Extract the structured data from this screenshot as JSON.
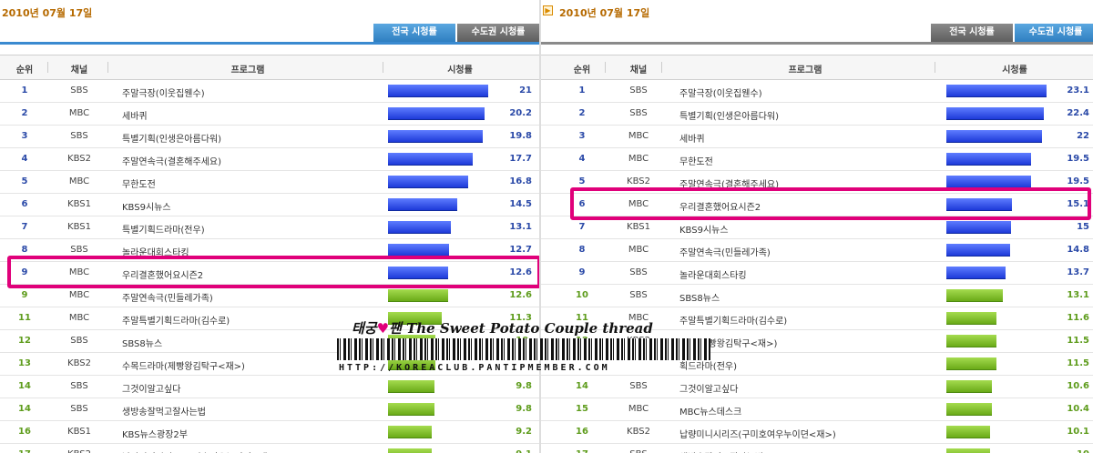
{
  "left": {
    "date": "2010년 07월 17일",
    "tabs": [
      "전국 시청률",
      "수도권 시청률"
    ],
    "active_tab": 0,
    "headers": {
      "rank": "순위",
      "channel": "채널",
      "program": "프로그램",
      "rating": "시청률"
    },
    "rows": [
      {
        "rank": "1",
        "channel": "SBS",
        "program": "주말극장(이웃집웬수)",
        "rating": "21",
        "value": 21,
        "color": "blue"
      },
      {
        "rank": "2",
        "channel": "MBC",
        "program": "세바퀴",
        "rating": "20.2",
        "value": 20.2,
        "color": "blue"
      },
      {
        "rank": "3",
        "channel": "SBS",
        "program": "특별기획(인생은아름다워)",
        "rating": "19.8",
        "value": 19.8,
        "color": "blue"
      },
      {
        "rank": "4",
        "channel": "KBS2",
        "program": "주말연속극(결혼해주세요)",
        "rating": "17.7",
        "value": 17.7,
        "color": "blue"
      },
      {
        "rank": "5",
        "channel": "MBC",
        "program": "무한도전",
        "rating": "16.8",
        "value": 16.8,
        "color": "blue"
      },
      {
        "rank": "6",
        "channel": "KBS1",
        "program": "KBS9시뉴스",
        "rating": "14.5",
        "value": 14.5,
        "color": "blue"
      },
      {
        "rank": "7",
        "channel": "KBS1",
        "program": "특별기획드라마(전우)",
        "rating": "13.1",
        "value": 13.1,
        "color": "blue"
      },
      {
        "rank": "8",
        "channel": "SBS",
        "program": "놀라운대회스타킹",
        "rating": "12.7",
        "value": 12.7,
        "color": "blue"
      },
      {
        "rank": "9",
        "channel": "MBC",
        "program": "우리결혼했어요시즌2",
        "rating": "12.6",
        "value": 12.6,
        "color": "blue"
      },
      {
        "rank": "9",
        "channel": "MBC",
        "program": "주말연속극(민들레가족)",
        "rating": "12.6",
        "value": 12.6,
        "color": "green"
      },
      {
        "rank": "11",
        "channel": "MBC",
        "program": "주말특별기획드라마(김수로)",
        "rating": "11.3",
        "value": 11.3,
        "color": "green"
      },
      {
        "rank": "12",
        "channel": "SBS",
        "program": "SBS8뉴스",
        "rating": "10.",
        "value": 10,
        "color": "green"
      },
      {
        "rank": "13",
        "channel": "KBS2",
        "program": "수목드라마(제빵왕김탁구<재>)",
        "rating": "",
        "value": 10,
        "color": "green"
      },
      {
        "rank": "14",
        "channel": "SBS",
        "program": "그것이알고싶다",
        "rating": "9.8",
        "value": 9.8,
        "color": "green"
      },
      {
        "rank": "14",
        "channel": "SBS",
        "program": "생방송잘먹고잘사는법",
        "rating": "9.8",
        "value": 9.8,
        "color": "green"
      },
      {
        "rank": "16",
        "channel": "KBS1",
        "program": "KBS뉴스광장2부",
        "rating": "9.2",
        "value": 9.2,
        "color": "green"
      },
      {
        "rank": "17",
        "channel": "KBS2",
        "program": "납량미니시리즈(구미호여우누이뎐<재>)",
        "rating": "9.1",
        "value": 9.1,
        "color": "green"
      }
    ],
    "highlight_index": 8
  },
  "right": {
    "date": "2010년 07월 17일",
    "tabs": [
      "전국 시청률",
      "수도권 시청률"
    ],
    "active_tab": 1,
    "headers": {
      "rank": "순위",
      "channel": "채널",
      "program": "프로그램",
      "rating": "시청률"
    },
    "rows": [
      {
        "rank": "1",
        "channel": "SBS",
        "program": "주말극장(이웃집웬수)",
        "rating": "23.1",
        "value": 23.1,
        "color": "blue"
      },
      {
        "rank": "2",
        "channel": "SBS",
        "program": "특별기획(인생은아름다워)",
        "rating": "22.4",
        "value": 22.4,
        "color": "blue"
      },
      {
        "rank": "3",
        "channel": "MBC",
        "program": "세바퀴",
        "rating": "22",
        "value": 22,
        "color": "blue"
      },
      {
        "rank": "4",
        "channel": "MBC",
        "program": "무한도전",
        "rating": "19.5",
        "value": 19.5,
        "color": "blue"
      },
      {
        "rank": "5",
        "channel": "KBS2",
        "program": "주말연속극(결혼해주세요)",
        "rating": "19.5",
        "value": 19.5,
        "color": "blue"
      },
      {
        "rank": "6",
        "channel": "MBC",
        "program": "우리결혼했어요시즌2",
        "rating": "15.1",
        "value": 15.1,
        "color": "blue"
      },
      {
        "rank": "7",
        "channel": "KBS1",
        "program": "KBS9시뉴스",
        "rating": "15",
        "value": 15,
        "color": "blue"
      },
      {
        "rank": "8",
        "channel": "MBC",
        "program": "주말연속극(민들레가족)",
        "rating": "14.8",
        "value": 14.8,
        "color": "blue"
      },
      {
        "rank": "9",
        "channel": "SBS",
        "program": "놀라운대회스타킹",
        "rating": "13.7",
        "value": 13.7,
        "color": "blue"
      },
      {
        "rank": "10",
        "channel": "SBS",
        "program": "SBS8뉴스",
        "rating": "13.1",
        "value": 13.1,
        "color": "green"
      },
      {
        "rank": "11",
        "channel": "MBC",
        "program": "주말특별기획드라마(김수로)",
        "rating": "11.6",
        "value": 11.6,
        "color": "green"
      },
      {
        "rank": "12",
        "channel": "KBS2",
        "program": "라마(제빵왕김탁구<재>)",
        "rating": "11.5",
        "value": 11.5,
        "color": "green"
      },
      {
        "rank": "",
        "channel": "",
        "program": "획드라마(전우)",
        "rating": "11.5",
        "value": 11.5,
        "color": "green"
      },
      {
        "rank": "14",
        "channel": "SBS",
        "program": "그것이알고싶다",
        "rating": "10.6",
        "value": 10.6,
        "color": "green"
      },
      {
        "rank": "15",
        "channel": "MBC",
        "program": "MBC뉴스데스크",
        "rating": "10.4",
        "value": 10.4,
        "color": "green"
      },
      {
        "rank": "16",
        "channel": "KBS2",
        "program": "납량미니시리즈(구미호여우누이뎐<재>)",
        "rating": "10.1",
        "value": 10.1,
        "color": "green"
      },
      {
        "rank": "17",
        "channel": "SBS",
        "program": "생방송잘먹고잘사는법",
        "rating": "10",
        "value": 10,
        "color": "green"
      }
    ],
    "highlight_index": 5
  },
  "watermark": {
    "prefix": "태궁",
    "heart": "♥",
    "suffix": "팬 The Sweet Potato Couple thread",
    "url": "HTTP://KOREACLUB.PANTIPMEMBER.COM"
  },
  "colors": {
    "highlight": "#e0007a",
    "blue_bar": "#1e3ad8",
    "green_bar": "#6aaa18",
    "date": "#b66a00",
    "tab_active": "#2f7fc1"
  }
}
